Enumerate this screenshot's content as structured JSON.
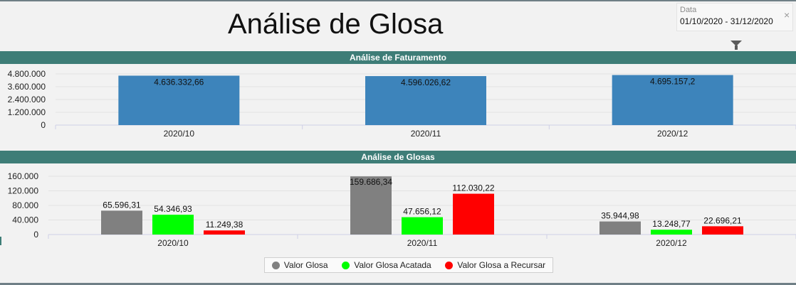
{
  "header": {
    "title": "Análise de Glosa",
    "filter_label": "Data",
    "filter_value": "01/10/2020 - 31/12/2020",
    "clear_symbol": "×"
  },
  "colors": {
    "header_bg": "#3e7d77",
    "faturamento_bar": "#3d84bb",
    "glosa": "#808080",
    "glosa_acatada": "#00ff00",
    "glosa_recursar": "#ff0000"
  },
  "chart_data": [
    {
      "type": "bar",
      "title": "Análise de Faturamento",
      "categories": [
        "2020/10",
        "2020/11",
        "2020/12"
      ],
      "values": [
        4636332.66,
        4596026.62,
        4695157.2
      ],
      "data_labels": [
        "4.636.332,66",
        "4.596.026,62",
        "4.695.157,2"
      ],
      "ylim": [
        0,
        4800000
      ],
      "yticks": [
        0,
        1200000,
        2400000,
        3600000,
        4800000
      ],
      "ytick_labels": [
        "0",
        "1.200.000",
        "2.400.000",
        "3.600.000",
        "4.800.000"
      ],
      "grid": true
    },
    {
      "type": "bar",
      "title": "Análise de Glosas",
      "categories": [
        "2020/10",
        "2020/11",
        "2020/12"
      ],
      "series": [
        {
          "name": "Valor Glosa",
          "color": "#808080",
          "values": [
            65596.31,
            159686.34,
            35944.98
          ],
          "labels": [
            "65.596,31",
            "159.686,34",
            "35.944,98"
          ]
        },
        {
          "name": "Valor Glosa Acatada",
          "color": "#00ff00",
          "values": [
            54346.93,
            47656.12,
            13248.77
          ],
          "labels": [
            "54.346,93",
            "47.656,12",
            "13.248,77"
          ]
        },
        {
          "name": "Valor Glosa a Recursar",
          "color": "#ff0000",
          "values": [
            11249.38,
            112030.22,
            22696.21
          ],
          "labels": [
            "11.249,38",
            "112.030,22",
            "22.696,21"
          ]
        }
      ],
      "ylim": [
        0,
        160000
      ],
      "yticks": [
        0,
        40000,
        80000,
        120000,
        160000
      ],
      "ytick_labels": [
        "0",
        "40.000",
        "80.000",
        "120.000",
        "160.000"
      ],
      "grid": true,
      "legend_position": "bottom"
    }
  ]
}
